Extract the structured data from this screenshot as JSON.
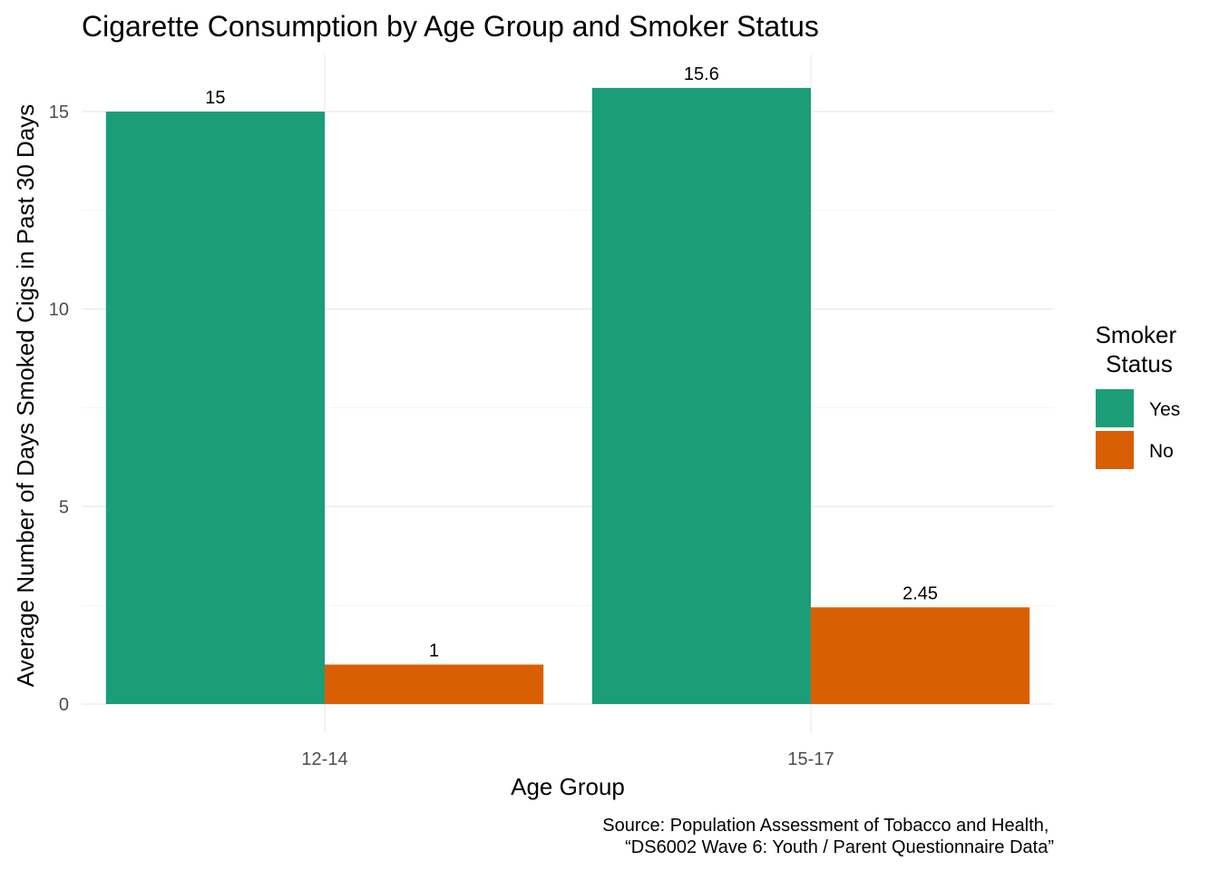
{
  "chart_data": {
    "type": "bar",
    "title": "Cigarette Consumption by Age Group and Smoker Status",
    "xlabel": "Age Group",
    "ylabel": "Average Number of Days Smoked Cigs in Past 30 Days",
    "categories": [
      "12-14",
      "15-17"
    ],
    "series": [
      {
        "name": "Yes",
        "values": [
          15,
          15.6
        ],
        "labels": [
          "15",
          "15.6"
        ],
        "color": "#1b9e77"
      },
      {
        "name": "No",
        "values": [
          1,
          2.45
        ],
        "labels": [
          "1",
          "2.45"
        ],
        "color": "#d95f02"
      }
    ],
    "ylim": [
      0,
      16.4
    ],
    "yticks": [
      0,
      5,
      10,
      15
    ],
    "ytick_labels": [
      "0",
      "5",
      "10",
      "15"
    ],
    "grid": true,
    "legend": {
      "title_lines": [
        "Smoker",
        "Status"
      ],
      "position": "right"
    },
    "caption_lines": [
      "Source: Population Assessment of Tobacco and Health,",
      "“DS6002 Wave 6: Youth / Parent Questionnaire Data”"
    ]
  }
}
